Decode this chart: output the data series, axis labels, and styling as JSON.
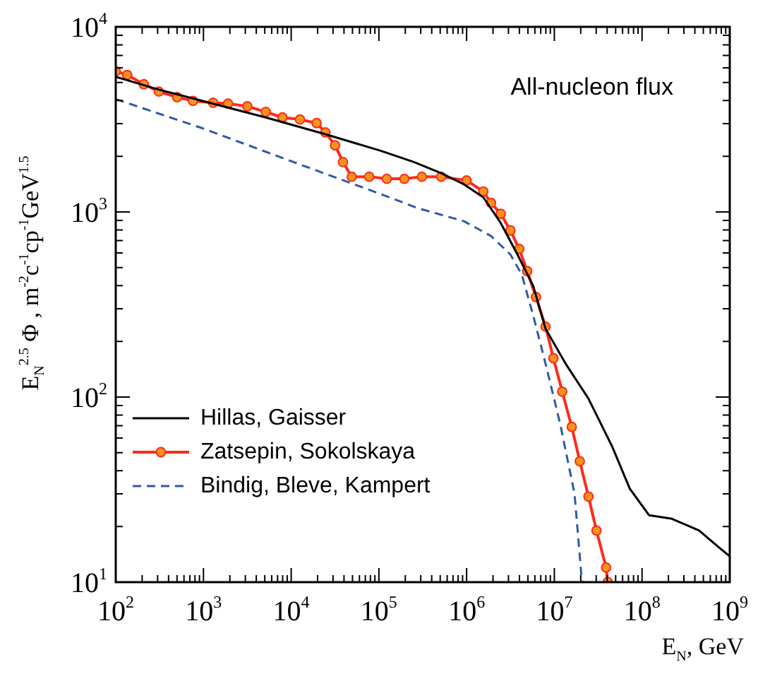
{
  "chart_data": {
    "type": "line",
    "xlabel": "E$_{N}$, GeV",
    "ylabel": "E$_{N}$$^{2.5}$ Φ , m$^{-2}$c$^{-1}$cp$^{-1}$GeV$^{1.5}$",
    "annotations": [
      "All-nucleon flux"
    ],
    "log": "xy",
    "legend": "bottom left",
    "grid": false,
    "xlim": [
      100,
      1000000000
    ],
    "ylim": [
      10,
      10000
    ],
    "xticks": [
      {
        "value": 100,
        "label": "10$^{2}$"
      },
      {
        "value": 200,
        "label": null
      },
      {
        "value": 300,
        "label": null
      },
      {
        "value": 400,
        "label": null
      },
      {
        "value": 500,
        "label": null
      },
      {
        "value": 600,
        "label": null
      },
      {
        "value": 700,
        "label": null
      },
      {
        "value": 800,
        "label": null
      },
      {
        "value": 900,
        "label": null
      },
      {
        "value": 1000,
        "label": "10$^{3}$"
      },
      {
        "value": 2000,
        "label": null
      },
      {
        "value": 3000,
        "label": null
      },
      {
        "value": 4000,
        "label": null
      },
      {
        "value": 5000,
        "label": null
      },
      {
        "value": 6000,
        "label": null
      },
      {
        "value": 7000,
        "label": null
      },
      {
        "value": 8000,
        "label": null
      },
      {
        "value": 9000,
        "label": null
      },
      {
        "value": 10000,
        "label": "10$^{4}$"
      },
      {
        "value": 20000,
        "label": null
      },
      {
        "value": 30000,
        "label": null
      },
      {
        "value": 40000,
        "label": null
      },
      {
        "value": 50000,
        "label": null
      },
      {
        "value": 60000,
        "label": null
      },
      {
        "value": 70000,
        "label": null
      },
      {
        "value": 80000,
        "label": null
      },
      {
        "value": 90000,
        "label": null
      },
      {
        "value": 100000,
        "label": "10$^{5}$"
      },
      {
        "value": 200000,
        "label": null
      },
      {
        "value": 300000,
        "label": null
      },
      {
        "value": 400000,
        "label": null
      },
      {
        "value": 500000,
        "label": null
      },
      {
        "value": 600000,
        "label": null
      },
      {
        "value": 700000,
        "label": null
      },
      {
        "value": 800000,
        "label": null
      },
      {
        "value": 900000,
        "label": null
      },
      {
        "value": 1000000,
        "label": "10$^{6}$"
      },
      {
        "value": 2000000,
        "label": null
      },
      {
        "value": 3000000,
        "label": null
      },
      {
        "value": 4000000,
        "label": null
      },
      {
        "value": 5000000,
        "label": null
      },
      {
        "value": 6000000,
        "label": null
      },
      {
        "value": 7000000,
        "label": null
      },
      {
        "value": 8000000,
        "label": null
      },
      {
        "value": 9000000,
        "label": null
      },
      {
        "value": 10000000,
        "label": "10$^{7}$"
      },
      {
        "value": 20000000,
        "label": null
      },
      {
        "value": 30000000,
        "label": null
      },
      {
        "value": 40000000,
        "label": null
      },
      {
        "value": 50000000,
        "label": null
      },
      {
        "value": 60000000,
        "label": null
      },
      {
        "value": 70000000,
        "label": null
      },
      {
        "value": 80000000,
        "label": null
      },
      {
        "value": 90000000,
        "label": null
      },
      {
        "value": 100000000,
        "label": "10$^{8}$"
      },
      {
        "value": 200000000,
        "label": null
      },
      {
        "value": 300000000,
        "label": null
      },
      {
        "value": 400000000,
        "label": null
      },
      {
        "value": 500000000,
        "label": null
      },
      {
        "value": 600000000,
        "label": null
      },
      {
        "value": 700000000,
        "label": null
      },
      {
        "value": 800000000,
        "label": null
      },
      {
        "value": 900000000,
        "label": null
      },
      {
        "value": 1000000000,
        "label": "10$^{9}$"
      }
    ],
    "yticks": [
      {
        "value": 10,
        "label": "10$^{1}$"
      },
      {
        "value": 20,
        "label": null
      },
      {
        "value": 30,
        "label": null
      },
      {
        "value": 40,
        "label": null
      },
      {
        "value": 50,
        "label": null
      },
      {
        "value": 60,
        "label": null
      },
      {
        "value": 70,
        "label": null
      },
      {
        "value": 80,
        "label": null
      },
      {
        "value": 90,
        "label": null
      },
      {
        "value": 100,
        "label": "10$^{2}$"
      },
      {
        "value": 200,
        "label": null
      },
      {
        "value": 300,
        "label": null
      },
      {
        "value": 400,
        "label": null
      },
      {
        "value": 500,
        "label": null
      },
      {
        "value": 600,
        "label": null
      },
      {
        "value": 700,
        "label": null
      },
      {
        "value": 800,
        "label": null
      },
      {
        "value": 900,
        "label": null
      },
      {
        "value": 1000,
        "label": "10$^{3}$"
      },
      {
        "value": 2000,
        "label": null
      },
      {
        "value": 3000,
        "label": null
      },
      {
        "value": 4000,
        "label": null
      },
      {
        "value": 5000,
        "label": null
      },
      {
        "value": 6000,
        "label": null
      },
      {
        "value": 7000,
        "label": null
      },
      {
        "value": 8000,
        "label": null
      },
      {
        "value": 9000,
        "label": null
      },
      {
        "value": 10000,
        "label": "10$^{4}$"
      }
    ],
    "series": [
      {
        "name": "Hillas, Gaisser",
        "color": "#000000",
        "marker": "none",
        "line_style": "solid",
        "x": [
          100,
          316,
          1175,
          5129,
          24547,
          104713,
          251189,
          512861,
          933254,
          1550000,
          2450000,
          3800000,
          5750000,
          7940000,
          13500000,
          24500000,
          45700000,
          72400000,
          120000000,
          219000000,
          447000000,
          741000000,
          1000000000
        ],
        "values": [
          5370,
          4570,
          3890,
          3240,
          2630,
          2140,
          1860,
          1620,
          1410,
          1200,
          871,
          589,
          398,
          234,
          151,
          98,
          54,
          32,
          23,
          22,
          19,
          15.5,
          13.8
        ]
      },
      {
        "name": "Zatsepin, Sokolskaya",
        "color": "#ff2a1a",
        "marker": "circle",
        "line_style": "solid",
        "x": [
          100,
          135,
          209,
          309,
          501,
          759,
          1288,
          1905,
          3162,
          5129,
          7943,
          12589,
          19498,
          24547,
          31623,
          38905,
          48978,
          77625,
          123000,
          195000,
          309000,
          513000,
          1000000,
          1550000,
          1900000,
          2450000,
          3160000,
          3980000,
          4900000,
          6170000,
          7940000,
          9770000,
          12300000,
          15800000,
          19500000,
          24500000,
          30200000,
          38900000,
          40700000
        ],
        "values": [
          5750,
          5500,
          4900,
          4470,
          4170,
          3980,
          3890,
          3850,
          3720,
          3470,
          3240,
          3160,
          3020,
          2690,
          2290,
          1860,
          1550,
          1550,
          1510,
          1510,
          1550,
          1550,
          1480,
          1290,
          1120,
          977,
          794,
          631,
          479,
          347,
          240,
          162,
          107,
          69,
          45,
          29,
          19,
          12,
          10
        ]
      },
      {
        "name": "Bindig, Bleve, Kampert",
        "color": "#2e5aa8",
        "marker": "none",
        "line_style": "dashed",
        "x": [
          100,
          1000,
          10000,
          100000,
          275000,
          933000,
          1900000,
          3160000,
          4270000,
          5750000,
          8130000,
          11700000,
          17000000,
          20400000,
          20900000
        ],
        "values": [
          4070,
          2820,
          1880,
          1260,
          1050,
          891,
          741,
          589,
          457,
          275,
          145,
          71,
          30,
          10.7,
          10
        ]
      }
    ]
  }
}
